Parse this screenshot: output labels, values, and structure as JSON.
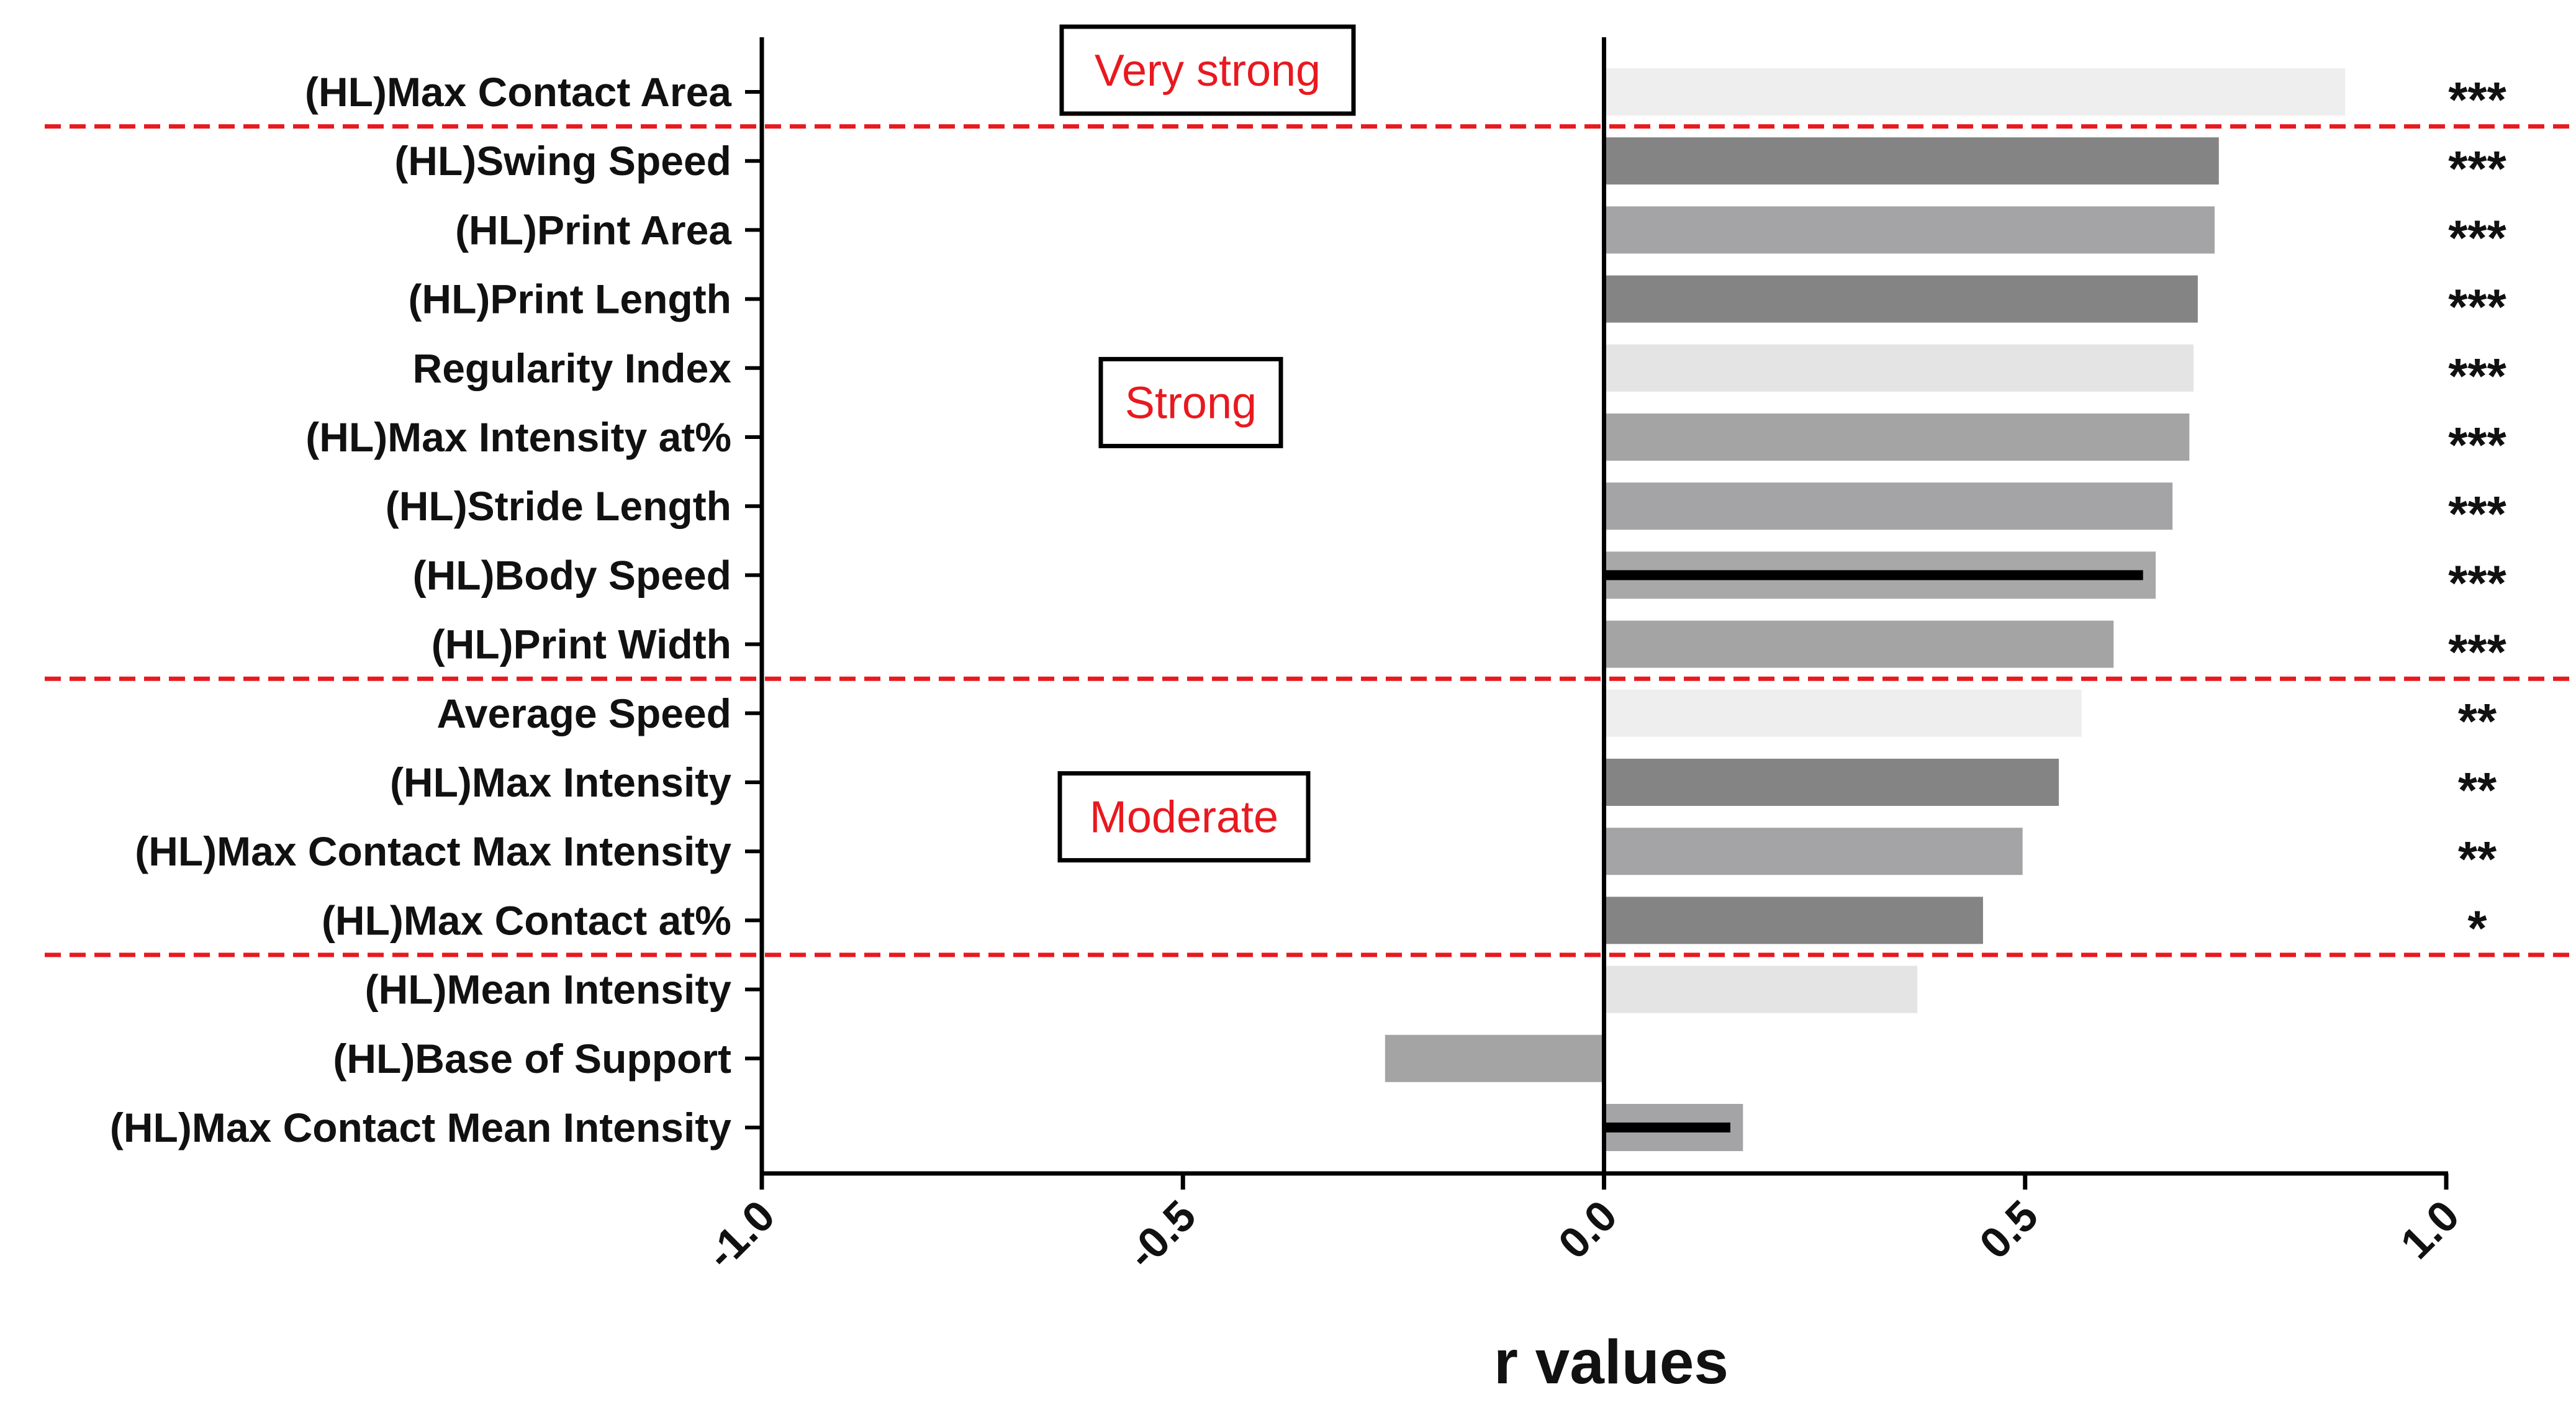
{
  "chart_data": {
    "type": "bar",
    "orientation": "horizontal",
    "xlabel": "r values",
    "xlim": [
      -1.0,
      1.0
    ],
    "xticks": [
      -1.0,
      -0.5,
      0.0,
      0.5,
      1.0
    ],
    "xtick_labels": [
      "-1.0",
      "-0.5",
      "0.0",
      "0.5",
      "1.0"
    ],
    "categories": [
      "(HL)Max Contact Area",
      "(HL)Swing Speed",
      "(HL)Print Area",
      "(HL)Print Length",
      "Regularity Index",
      "(HL)Max Intensity at%",
      "(HL)Stride Length",
      "(HL)Body Speed",
      "(HL)Print Width",
      "Average Speed",
      "(HL)Max Intensity",
      "(HL)Max Contact Max Intensity",
      "(HL)Max Contact at%",
      "(HL)Mean Intensity",
      "(HL)Base of Support",
      "(HL)Max Contact Mean Intensity"
    ],
    "values": [
      0.88,
      0.73,
      0.725,
      0.705,
      0.7,
      0.695,
      0.675,
      0.655,
      0.605,
      0.567,
      0.54,
      0.497,
      0.45,
      0.372,
      -0.26,
      0.165
    ],
    "bar_colors": [
      "#eeeeee",
      "#848484",
      "#a4a4a6",
      "#848484",
      "#e4e4e4",
      "#a4a4a4",
      "#a4a4a6",
      "#a8a8a8",
      "#a4a4a4",
      "#eeeeee",
      "#848484",
      "#a4a4a6",
      "#848484",
      "#e4e4e4",
      "#a4a4a4",
      "#a4a4a6"
    ],
    "inner_lines": [
      {
        "category": "(HL)Body Speed",
        "value": 0.64
      },
      {
        "category": "(HL)Max Contact Mean Intensity",
        "value": 0.15
      }
    ],
    "significance": [
      "***",
      "***",
      "***",
      "***",
      "***",
      "***",
      "***",
      "***",
      "***",
      "**",
      "**",
      "**",
      "*",
      "",
      "",
      ""
    ],
    "bands": [
      {
        "label": "Very strong",
        "categories": [
          "(HL)Max Contact Area"
        ]
      },
      {
        "label": "Strong",
        "categories": [
          "(HL)Swing Speed",
          "(HL)Print Area",
          "(HL)Print Length",
          "Regularity Index",
          "(HL)Max Intensity at%",
          "(HL)Stride Length",
          "(HL)Body Speed",
          "(HL)Print Width"
        ]
      },
      {
        "label": "Moderate",
        "categories": [
          "Average Speed",
          "(HL)Max Intensity",
          "(HL)Max Contact Max Intensity",
          "(HL)Max Contact at%"
        ]
      }
    ],
    "colors": {
      "axis": "#000000",
      "divider": "#e8191f",
      "band_text": "#e8191f",
      "band_box": "#000000",
      "inner_line": "#000000",
      "text": "#111111"
    }
  }
}
